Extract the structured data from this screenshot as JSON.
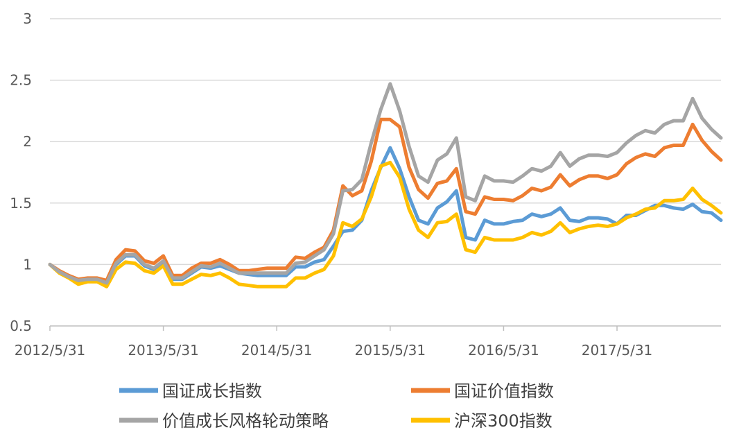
{
  "chart_data": {
    "type": "line",
    "title": "",
    "xlabel": "",
    "ylabel": "",
    "ylim": [
      0.5,
      3
    ],
    "y_ticks": [
      "0.5",
      "1",
      "1.5",
      "2",
      "2.5",
      "3"
    ],
    "x_tick_labels": [
      "2012/5/31",
      "2013/5/31",
      "2014/5/31",
      "2015/5/31",
      "2016/5/31",
      "2017/5/31"
    ],
    "x": [
      "2012/5/31",
      "2012/6/30",
      "2012/7/31",
      "2012/8/31",
      "2012/9/30",
      "2012/10/31",
      "2012/11/30",
      "2012/12/31",
      "2013/1/31",
      "2013/2/28",
      "2013/3/31",
      "2013/4/30",
      "2013/5/31",
      "2013/6/30",
      "2013/7/31",
      "2013/8/31",
      "2013/9/30",
      "2013/10/31",
      "2013/11/30",
      "2013/12/31",
      "2014/1/31",
      "2014/2/28",
      "2014/3/31",
      "2014/4/30",
      "2014/5/31",
      "2014/6/30",
      "2014/7/31",
      "2014/8/31",
      "2014/9/30",
      "2014/10/31",
      "2014/11/30",
      "2014/12/31",
      "2015/1/31",
      "2015/2/28",
      "2015/3/31",
      "2015/4/30",
      "2015/5/31",
      "2015/6/30",
      "2015/7/31",
      "2015/8/31",
      "2015/9/30",
      "2015/10/31",
      "2015/11/30",
      "2015/12/31",
      "2016/1/31",
      "2016/2/29",
      "2016/3/31",
      "2016/4/30",
      "2016/5/31",
      "2016/6/30",
      "2016/7/31",
      "2016/8/31",
      "2016/9/30",
      "2016/10/31",
      "2016/11/30",
      "2016/12/31",
      "2017/1/31",
      "2017/2/28",
      "2017/3/31",
      "2017/4/30",
      "2017/5/31",
      "2017/6/30",
      "2017/7/31",
      "2017/8/31",
      "2017/9/30",
      "2017/10/31",
      "2017/11/30",
      "2017/12/31",
      "2018/1/31",
      "2018/2/28",
      "2018/3/31",
      "2018/4/30"
    ],
    "series": [
      {
        "name": "国证成长指数",
        "color": "#5B9BD5",
        "values": [
          1.0,
          0.94,
          0.9,
          0.86,
          0.87,
          0.87,
          0.84,
          1.0,
          1.07,
          1.07,
          0.99,
          0.96,
          1.02,
          0.88,
          0.88,
          0.93,
          0.98,
          0.97,
          0.99,
          0.96,
          0.93,
          0.92,
          0.91,
          0.91,
          0.91,
          0.91,
          0.98,
          0.98,
          1.02,
          1.04,
          1.15,
          1.27,
          1.28,
          1.36,
          1.6,
          1.79,
          1.95,
          1.78,
          1.55,
          1.36,
          1.33,
          1.46,
          1.51,
          1.6,
          1.22,
          1.2,
          1.36,
          1.33,
          1.33,
          1.35,
          1.36,
          1.41,
          1.39,
          1.41,
          1.46,
          1.36,
          1.35,
          1.38,
          1.38,
          1.37,
          1.33,
          1.4,
          1.4,
          1.44,
          1.48,
          1.48,
          1.46,
          1.45,
          1.49,
          1.43,
          1.42,
          1.36
        ]
      },
      {
        "name": "国证价值指数",
        "color": "#ED7D31",
        "values": [
          1.0,
          0.95,
          0.91,
          0.88,
          0.89,
          0.89,
          0.87,
          1.04,
          1.12,
          1.11,
          1.03,
          1.01,
          1.07,
          0.91,
          0.91,
          0.97,
          1.01,
          1.01,
          1.04,
          1.0,
          0.95,
          0.95,
          0.96,
          0.97,
          0.97,
          0.97,
          1.06,
          1.05,
          1.1,
          1.14,
          1.28,
          1.64,
          1.56,
          1.6,
          1.84,
          2.18,
          2.18,
          2.12,
          1.79,
          1.61,
          1.54,
          1.66,
          1.68,
          1.78,
          1.43,
          1.41,
          1.55,
          1.53,
          1.53,
          1.52,
          1.56,
          1.62,
          1.6,
          1.63,
          1.73,
          1.64,
          1.69,
          1.72,
          1.72,
          1.7,
          1.73,
          1.82,
          1.87,
          1.9,
          1.88,
          1.95,
          1.97,
          1.97,
          2.14,
          2.01,
          1.92,
          1.85
        ]
      },
      {
        "name": "价值成长风格轮动策略",
        "color": "#A5A5A5",
        "values": [
          1.0,
          0.94,
          0.9,
          0.87,
          0.88,
          0.88,
          0.85,
          1.01,
          1.08,
          1.08,
          1.0,
          0.97,
          1.03,
          0.89,
          0.89,
          0.94,
          0.99,
          0.98,
          1.01,
          0.97,
          0.93,
          0.93,
          0.93,
          0.93,
          0.93,
          0.93,
          1.01,
          1.02,
          1.07,
          1.12,
          1.25,
          1.6,
          1.61,
          1.69,
          1.99,
          2.26,
          2.47,
          2.25,
          1.96,
          1.72,
          1.67,
          1.85,
          1.9,
          2.03,
          1.55,
          1.52,
          1.72,
          1.68,
          1.68,
          1.67,
          1.72,
          1.78,
          1.76,
          1.8,
          1.91,
          1.8,
          1.86,
          1.89,
          1.89,
          1.88,
          1.91,
          1.99,
          2.05,
          2.09,
          2.07,
          2.14,
          2.17,
          2.17,
          2.35,
          2.19,
          2.1,
          2.03
        ]
      },
      {
        "name": "沪深300指数",
        "color": "#FFC000",
        "values": [
          1.0,
          0.93,
          0.89,
          0.84,
          0.86,
          0.86,
          0.82,
          0.96,
          1.02,
          1.01,
          0.95,
          0.93,
          0.99,
          0.84,
          0.84,
          0.88,
          0.92,
          0.91,
          0.93,
          0.89,
          0.84,
          0.83,
          0.82,
          0.82,
          0.82,
          0.82,
          0.89,
          0.89,
          0.93,
          0.96,
          1.07,
          1.34,
          1.31,
          1.37,
          1.55,
          1.8,
          1.83,
          1.71,
          1.45,
          1.28,
          1.22,
          1.34,
          1.35,
          1.41,
          1.12,
          1.1,
          1.22,
          1.2,
          1.2,
          1.2,
          1.22,
          1.26,
          1.24,
          1.27,
          1.34,
          1.26,
          1.29,
          1.31,
          1.32,
          1.31,
          1.33,
          1.38,
          1.41,
          1.45,
          1.46,
          1.52,
          1.52,
          1.53,
          1.62,
          1.53,
          1.48,
          1.42
        ]
      }
    ],
    "grid": true,
    "legend_position": "bottom"
  }
}
